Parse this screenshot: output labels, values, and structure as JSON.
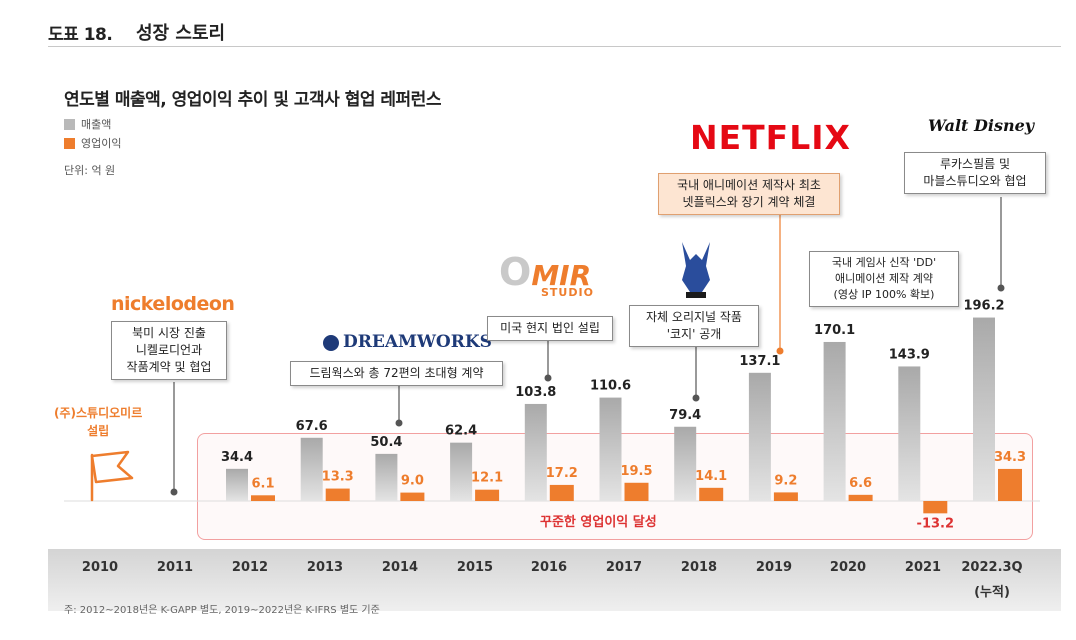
{
  "header": {
    "label": "도표 18.",
    "title": "성장 스토리"
  },
  "chart_title": "연도별 매출액, 영업이익 추이 및 고객사 협업 레퍼런스",
  "legend": [
    {
      "label": "매출액",
      "color": "#b9b9b9"
    },
    {
      "label": "영업이익",
      "color": "#ee7d2d"
    }
  ],
  "unit": "단위: 억 원",
  "founding": {
    "line1": "(주)스튜디오미르",
    "line2": "설립"
  },
  "op_profit_note": "꾸준한 영업이익 달성",
  "footnote": "주: 2012~2018년은 K-GAPP 별도, 2019~2022년은 K-IFRS 별도 기준",
  "logos": {
    "nickelodeon": "nickelodeon",
    "dreamworks": "DREAMWORKS",
    "studio_mir_o": "O",
    "studio_mir_mr": "MIR",
    "studio_mir_studio": "STUDIO",
    "netflix": "NETFLIX",
    "disney": "Walt Disney"
  },
  "callouts": {
    "nickelodeon": [
      "북미 시장 진출",
      "니켈로디언과",
      "작품계약 및 협업"
    ],
    "dreamworks": [
      "드림웍스와 총 72편의 초대형 계약"
    ],
    "studio_mir": [
      "미국 현지 법인 설립"
    ],
    "kozi": [
      "자체 오리지널 작품",
      "'코지' 공개"
    ],
    "netflix": [
      "국내 애니메이션 제작사 최초",
      "넷플릭스와 장기 계약 체결"
    ],
    "dd": [
      "국내 게임사 신작 'DD'",
      "애니메이션 제작 계약",
      "(영상 IP 100% 확보)"
    ],
    "disney": [
      "루카스필름 및",
      "마블스튜디오와 협업"
    ]
  },
  "years": [
    "2010",
    "2011",
    "2012",
    "2013",
    "2014",
    "2015",
    "2016",
    "2017",
    "2018",
    "2019",
    "2020",
    "2021",
    "2022.3Q"
  ],
  "year_suffix": "(누적)",
  "chart_data": {
    "type": "bar",
    "title": "연도별 매출액, 영업이익 추이 및 고객사 협업 레퍼런스",
    "unit": "억 원",
    "categories": [
      "2012",
      "2013",
      "2014",
      "2015",
      "2016",
      "2017",
      "2018",
      "2019",
      "2020",
      "2021",
      "2022.3Q"
    ],
    "series": [
      {
        "name": "매출액",
        "color": "#b9b9b9",
        "values": [
          34.4,
          67.6,
          50.4,
          62.4,
          103.8,
          110.6,
          79.4,
          137.1,
          170.1,
          143.9,
          196.2
        ]
      },
      {
        "name": "영업이익",
        "color": "#ee7d2d",
        "values": [
          6.1,
          13.3,
          9.0,
          12.1,
          17.2,
          19.5,
          14.1,
          9.2,
          6.6,
          -13.2,
          34.3
        ]
      }
    ],
    "value_labels": {
      "매출액": [
        "34.4",
        "67.6",
        "50.4",
        "62.4",
        "103.8",
        "110.6",
        "79.4",
        "137.1",
        "170.1",
        "143.9",
        "196.2"
      ],
      "영업이익": [
        "6.1",
        "13.3",
        "9.0",
        "12.1",
        "17.2",
        "19.5",
        "14.1",
        "9.2",
        "6.6",
        "-13.2",
        "34.3"
      ]
    }
  }
}
